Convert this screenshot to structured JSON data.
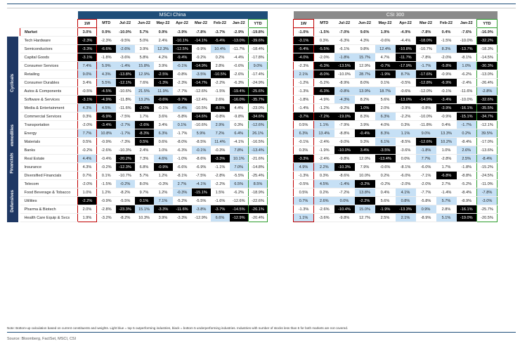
{
  "left_title": "MSCI China",
  "right_title": "CSI 300",
  "columns": [
    "1W",
    "MTD",
    "Jul-22",
    "Jun-22",
    "May-22",
    "Apr-22",
    "Mar-22",
    "Feb-22",
    "Jan-22",
    "YTD"
  ],
  "market": {
    "label": "Market",
    "msci": [
      "3.0%",
      "0.9%",
      "-10.0%",
      "5.7%",
      "0.9%",
      "-3.9%",
      "-7.8%",
      "-3.7%",
      "-2.9%",
      "-19.8%"
    ],
    "csi": [
      "-1.0%",
      "-1.5%",
      "-7.0%",
      "9.6%",
      "1.9%",
      "-4.9%",
      "-7.8%",
      "0.4%",
      "-7.6%",
      "-16.9%"
    ]
  },
  "sectors": [
    {
      "name": "Cyclicals",
      "rows": [
        0,
        10
      ]
    },
    {
      "name": "Commodities",
      "rows": [
        11,
        12
      ]
    },
    {
      "name": "Financials",
      "rows": [
        13,
        16
      ]
    },
    {
      "name": "Defensives",
      "rows": [
        17,
        21
      ]
    }
  ],
  "rows": [
    {
      "name": "Tech Hardware",
      "msci": [
        "-2.3%",
        "-2.3%",
        "-9.5%",
        "5.0%",
        "2.4%",
        "-10.1%",
        "-14.1%",
        "-5.4%",
        "-13.0%",
        "-39.6%"
      ],
      "csi": [
        "-3.1%",
        "0.3%",
        "-6.3%",
        "4.3%",
        "-0.6%",
        "-4.4%",
        "-18.0%",
        "-1.5%",
        "-10.0%",
        "-32.2%"
      ]
    },
    {
      "name": "Semiconductors",
      "msci": [
        "-3.3%",
        "-6.6%",
        "-2.6%",
        "3.9%",
        "12.3%",
        "-12.5%",
        "-9.9%",
        "10.4%",
        "-11.7%",
        "-18.4%"
      ],
      "csi": [
        "-5.4%",
        "-5.5%",
        "-6.1%",
        "9.8%",
        "12.4%",
        "-10.8%",
        "-10.7%",
        "8.3%",
        "-13.7%",
        "-18.3%"
      ]
    },
    {
      "name": "Capital Goods",
      "msci": [
        "-3.1%",
        "-1.8%",
        "-3.6%",
        "5.8%",
        "4.2%",
        "-9.4%",
        "-9.2%",
        "0.2%",
        "-4.4%",
        "-17.8%"
      ],
      "csi": [
        "-4.0%",
        "-2.0%",
        "-1.8%",
        "15.7%",
        "4.7%",
        "-11.7%",
        "-7.8%",
        "-2.0%",
        "-8.1%",
        "-14.5%"
      ]
    },
    {
      "name": "Consumer Services",
      "msci": [
        "7.4%",
        "5.9%",
        "-1.4%",
        "15.8%",
        "3.9%",
        "-0.1%",
        "-14.9%",
        "2.8%",
        "-0.6%",
        "9.0%"
      ],
      "csi": [
        "-2.3%",
        "-6.3%",
        "-13.5%",
        "12.9%",
        "-0.7%",
        "-17.9%",
        "-1.7%",
        "-5.8%",
        "1.0%",
        "-30.3%"
      ]
    },
    {
      "name": "Retailing",
      "msci": [
        "9.0%",
        "4.3%",
        "-13.8%",
        "12.9%",
        "-2.5%",
        "-0.8%",
        "-3.5%",
        "-10.5%",
        "-2.6%",
        "-17.4%"
      ],
      "csi": [
        "2.1%",
        "-8.0%",
        "-10.0%",
        "28.7%",
        "-1.9%",
        "8.7%",
        "-17.6%",
        "-0.9%",
        "-6.2%",
        "-13.0%"
      ]
    },
    {
      "name": "Consumer Durables",
      "msci": [
        "3.4%",
        "5.5%",
        "-12.1%",
        "7.6%",
        "-1.3%",
        "-2.3%",
        "-14.7%",
        "-2.2%",
        "-6.3%",
        "-24.9%"
      ],
      "csi": [
        "-1.2%",
        "-5.2%",
        "-8.9%",
        "8.0%",
        "0.1%",
        "-0.5%",
        "-12.8%",
        "-6.9%",
        "-2.4%",
        "-26.4%"
      ]
    },
    {
      "name": "Autos & Components",
      "msci": [
        "-0.5%",
        "-4.5%",
        "-10.6%",
        "21.5%",
        "11.9%",
        "-7.7%",
        "-12.6%",
        "-1.5%",
        "-19.4%",
        "-25.6%"
      ],
      "csi": [
        "-1.3%",
        "-6.3%",
        "-0.8%",
        "13.9%",
        "18.7%",
        "-0.6%",
        "-12.0%",
        "-0.1%",
        "-11.6%",
        "-2.8%"
      ]
    },
    {
      "name": "Software & Services",
      "msci": [
        "-3.1%",
        "-4.9%",
        "-11.8%",
        "13.2%",
        "-0.6%",
        "-9.7%",
        "-12.4%",
        "2.6%",
        "-16.0%",
        "-35.7%"
      ],
      "csi": [
        "-1.8%",
        "-4.9%",
        "-4.3%",
        "8.2%",
        "5.6%",
        "-13.0%",
        "-14.9%",
        "-3.4%",
        "-10.0%",
        "-32.6%"
      ]
    },
    {
      "name": "Media & Entertainment",
      "msci": [
        "4.3%",
        "4.5%",
        "-11.6%",
        "-2.0%",
        "-0.1%",
        "-0.4%",
        "-10.5%",
        "-8.5%",
        "4.4%",
        "-23.0%"
      ],
      "csi": [
        "-1.4%",
        "-1.2%",
        "-9.2%",
        "1.0%",
        "2.0%",
        "-3.9%",
        "-9.8%",
        "-3.9%",
        "-16.1%",
        "-35.5%"
      ]
    },
    {
      "name": "Commercial Services",
      "msci": [
        "0.3%",
        "-6.9%",
        "-7.5%",
        "1.7%",
        "3.6%",
        "-5.8%",
        "-14.6%",
        "-0.8%",
        "-9.8%",
        "-34.6%"
      ],
      "csi": [
        "-3.7%",
        "-7.2%",
        "-19.0%",
        "8.3%",
        "6.3%",
        "-2.2%",
        "-10.0%",
        "-0.9%",
        "-15.1%",
        "-34.7%"
      ]
    },
    {
      "name": "Transportation",
      "msci": [
        "-2.0%",
        "-3.4%",
        "-2.7%",
        "-2.6%",
        "3.4%",
        "0.1%",
        "-10.6%",
        "2.9%",
        "0.3%",
        "-12.6%"
      ],
      "csi": [
        "0.5%",
        "1.1%",
        "-7.9%",
        "3.9%",
        "4.0%",
        "0.3%",
        "-11.8%",
        "0.4%",
        "-1.7%",
        "-12.1%"
      ]
    },
    {
      "name": "Energy",
      "msci": [
        "7.7%",
        "10.8%",
        "-1.7%",
        "-8.3%",
        "6.3%",
        "-1.7%",
        "5.9%",
        "7.2%",
        "6.4%",
        "26.1%"
      ],
      "csi": [
        "6.3%",
        "13.4%",
        "-8.8%",
        "-0.4%",
        "8.3%",
        "1.1%",
        "9.0%",
        "13.3%",
        "0.2%",
        "39.5%"
      ]
    },
    {
      "name": "Materials",
      "msci": [
        "0.5%",
        "-0.9%",
        "-7.3%",
        "0.5%",
        "0.6%",
        "-8.0%",
        "-8.5%",
        "11.4%",
        "-4.1%",
        "-16.5%"
      ],
      "csi": [
        "-0.1%",
        "-2.4%",
        "-9.0%",
        "9.3%",
        "6.1%",
        "-8.5%",
        "-12.6%",
        "10.2%",
        "-8.4%",
        "-17.0%"
      ]
    },
    {
      "name": "Banks",
      "msci": [
        "-0.2%",
        "-2.6%",
        "-10.3%",
        "2.4%",
        "1.0%",
        "-6.3%",
        "-0.1%",
        "-0.3%",
        "7.8%",
        "-13.4%"
      ],
      "csi": [
        "0.3%",
        "-1.9%",
        "-10.0%",
        "3.4%",
        "-3.5%",
        "-3.6%",
        "-1.8%",
        "1.0%",
        "2.6%",
        "-13.6%"
      ]
    },
    {
      "name": "Real Estate",
      "msci": [
        "4.4%",
        "-0.4%",
        "-20.2%",
        "7.3%",
        "4.6%",
        "-1.0%",
        "-8.6%",
        "-3.3%",
        "10.1%",
        "-21.6%"
      ],
      "csi": [
        "-3.3%",
        "-2.4%",
        "-9.8%",
        "12.0%",
        "-13.4%",
        "0.0%",
        "7.7%",
        "-2.8%",
        "2.5%",
        "-8.4%"
      ]
    },
    {
      "name": "Insurance",
      "msci": [
        "4.3%",
        "-0.2%",
        "-12.3%",
        "6.8%",
        "-0.9%",
        "-6.6%",
        "-6.9%",
        "-1.1%",
        "7.0%",
        "-14.8%"
      ],
      "csi": [
        "4.9%",
        "2.2%",
        "-10.3%",
        "7.9%",
        "-0.6%",
        "-8.1%",
        "-6.0%",
        "1.7%",
        "-1.8%",
        "-15.2%"
      ]
    },
    {
      "name": "Diversified Financials",
      "msci": [
        "0.7%",
        "0.1%",
        "-10.7%",
        "5.7%",
        "1.2%",
        "-8.1%",
        "-7.5%",
        "-2.8%",
        "-5.5%",
        "-25.4%"
      ],
      "csi": [
        "-1.3%",
        "0.3%",
        "-8.6%",
        "10.0%",
        "0.2%",
        "-6.0%",
        "-7.1%",
        "-6.8%",
        "-8.8%",
        "-24.5%"
      ]
    },
    {
      "name": "Telecom",
      "msci": [
        "-2.0%",
        "-1.5%",
        "-0.2%",
        "8.0%",
        "-0.3%",
        "2.7%",
        "-4.1%",
        "-2.2%",
        "6.5%",
        "8.5%"
      ],
      "csi": [
        "-0.5%",
        "4.5%",
        "-1.4%",
        "-3.2%",
        "-0.2%",
        "-2.0%",
        "-2.0%",
        "2.7%",
        "-5.2%",
        "-11.0%"
      ]
    },
    {
      "name": "Food Beverage & Tobacco",
      "msci": [
        "1.0%",
        "1.2%",
        "-8.2%",
        "9.7%",
        "1.2%",
        "-0.3%",
        "-15.1%",
        "1.5%",
        "-6.2%",
        "-18.9%"
      ],
      "csi": [
        "0.5%",
        "0.2%",
        "-7.2%",
        "13.8%",
        "0.4%",
        "4.1%",
        "-7.7%",
        "-1.4%",
        "-8.4%",
        "-7.8%"
      ]
    },
    {
      "name": "Utilities",
      "msci": [
        "-2.2%",
        "-0.9%",
        "-5.5%",
        "0.1%",
        "7.1%",
        "-5.2%",
        "-5.5%",
        "-1.6%",
        "-12.6%",
        "-22.6%"
      ],
      "csi": [
        "0.7%",
        "2.6%",
        "0.0%",
        "-2.2%",
        "5.6%",
        "0.8%",
        "-5.8%",
        "5.7%",
        "-8.9%",
        "-3.0%"
      ]
    },
    {
      "name": "Pharma & Biotech",
      "msci": [
        "2.0%",
        "-2.8%",
        "-23.3%",
        "15.1%",
        "-3.3%",
        "-11.6%",
        "-3.8%",
        "-3.7%",
        "-14.5%",
        "-26.1%"
      ],
      "csi": [
        "-1.3%",
        "-2.6%",
        "-10.4%",
        "15.0%",
        "-1.9%",
        "-13.3%",
        "0.9%",
        "2.8%",
        "-16.1%",
        "-25.7%"
      ]
    },
    {
      "name": "Health Care Equip & Svcs",
      "msci": [
        "1.9%",
        "-3.2%",
        "-8.2%",
        "10.3%",
        "3.9%",
        "-3.3%",
        "-12.9%",
        "6.6%",
        "-12.9%",
        "-20.4%"
      ],
      "csi": [
        "1.1%",
        "-3.6%",
        "-9.8%",
        "12.7%",
        "2.5%",
        "2.1%",
        "-8.9%",
        "5.1%",
        "-19.0%",
        "-20.5%"
      ]
    }
  ],
  "highlight_colors": {
    "top5": "#c6e0f5",
    "bottom5": "#000000"
  },
  "note": "Note: Bottom-up calculation based on current constituents and weights. Light blue = top 5 outperforming industries, black = bottom 5 underperforming industries. Industries with number of stocks less than 5 for both markets are not covered.",
  "source": "Source: Bloomberg, FactSet, MSCI, CSI"
}
